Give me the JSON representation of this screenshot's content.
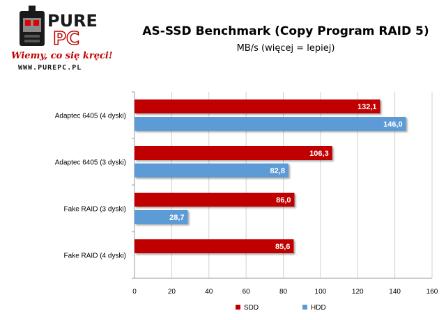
{
  "logo": {
    "brand_top": "PURE",
    "brand_bottom": "PC",
    "slogan": "Wiemy, co się kręci!",
    "url": "WWW.PUREPC.PL"
  },
  "colors": {
    "sdd": "#c00000",
    "hdd": "#5b9bd5",
    "grid": "#d0d0d0",
    "axis": "#9a9a9a"
  },
  "chart_data": {
    "type": "bar",
    "orientation": "horizontal",
    "title": "AS-SSD Benchmark (Copy Program RAID 5)",
    "subtitle": "MB/s (więcej = lepiej)",
    "categories": [
      "Adaptec 6405 (4 dyski)",
      "Adaptec 6405 (3 dyski)",
      "Fake RAID (3 dyski)",
      "Fake RAID (4 dyski)"
    ],
    "series": [
      {
        "name": "SDD",
        "color": "#c00000",
        "values": [
          132.1,
          106.3,
          86.0,
          85.6
        ],
        "labels": [
          "132,1",
          "106,3",
          "86,0",
          "85,6"
        ]
      },
      {
        "name": "HDD",
        "color": "#5b9bd5",
        "values": [
          146.0,
          82.8,
          28.7,
          null
        ],
        "labels": [
          "146,0",
          "82,8",
          "28,7",
          ""
        ]
      }
    ],
    "xlim": [
      0,
      160
    ],
    "xticks": [
      "0",
      "20",
      "40",
      "60",
      "80",
      "100",
      "120",
      "140",
      "160"
    ],
    "grid": true,
    "legend_position": "bottom"
  }
}
